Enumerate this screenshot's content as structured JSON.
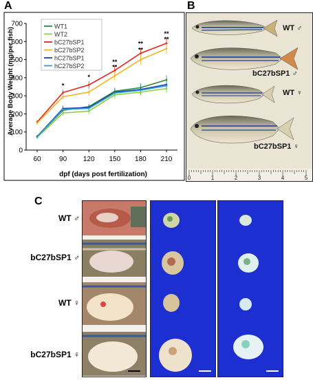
{
  "panels": {
    "a_letter": "A",
    "b_letter": "B",
    "c_letter": "C"
  },
  "chart_data": {
    "type": "line",
    "ylabel": "Average Body Weight  (mg/per fish)",
    "xlabel": "dpf (days post fertilization)",
    "x": [
      60,
      90,
      120,
      150,
      180,
      210
    ],
    "xticks": [
      "60",
      "90",
      "120",
      "150",
      "180",
      "210"
    ],
    "ylim": [
      0,
      700
    ],
    "yticks": [
      "0",
      "100",
      "200",
      "300",
      "400",
      "500",
      "600",
      "700"
    ],
    "legend_position": "top-left",
    "series": [
      {
        "name": "WT1",
        "color": "#2e8b3a",
        "values": [
          73,
          220,
          240,
          325,
          345,
          388
        ],
        "errors": [
          8,
          15,
          15,
          20,
          25,
          25
        ]
      },
      {
        "name": "WT2",
        "color": "#8fcf3c",
        "values": [
          70,
          205,
          215,
          305,
          320,
          340
        ],
        "errors": [
          8,
          15,
          15,
          20,
          20,
          25
        ]
      },
      {
        "name": "bC27bSP1",
        "color": "#e8231e",
        "values": [
          155,
          318,
          360,
          440,
          535,
          590
        ],
        "errors": [
          10,
          15,
          20,
          25,
          30,
          30
        ]
      },
      {
        "name": "bC27bSP2",
        "color": "#f5b21a",
        "values": [
          150,
          295,
          320,
          410,
          500,
          560
        ],
        "errors": [
          10,
          15,
          20,
          25,
          30,
          30
        ]
      },
      {
        "name": "hC27bSP1",
        "color": "#1f3fbf",
        "values": [
          75,
          230,
          235,
          320,
          335,
          362
        ],
        "errors": [
          8,
          15,
          15,
          20,
          20,
          25
        ]
      },
      {
        "name": "hC27bSP2",
        "color": "#2aa6c9",
        "values": [
          72,
          225,
          230,
          315,
          330,
          355
        ],
        "errors": [
          8,
          15,
          15,
          20,
          20,
          25
        ]
      }
    ],
    "annotations": [
      {
        "x": 90,
        "text": "*"
      },
      {
        "x": 120,
        "text": "*"
      },
      {
        "x": 150,
        "text": "**"
      },
      {
        "x": 180,
        "text": "**"
      },
      {
        "x": 210,
        "text": "**"
      }
    ]
  },
  "panel_b": {
    "labels": [
      "WT ♂",
      "bC27bSP1 ♂",
      "WT ♀",
      "bC27bSP1 ♀"
    ],
    "ruler_numbers": [
      "0",
      "1",
      "2",
      "3",
      "4",
      "5"
    ]
  },
  "panel_c": {
    "labels": [
      "WT ♂",
      "bC27bSP1 ♂",
      "WT ♀",
      "bC27bSP1 ♀"
    ]
  }
}
